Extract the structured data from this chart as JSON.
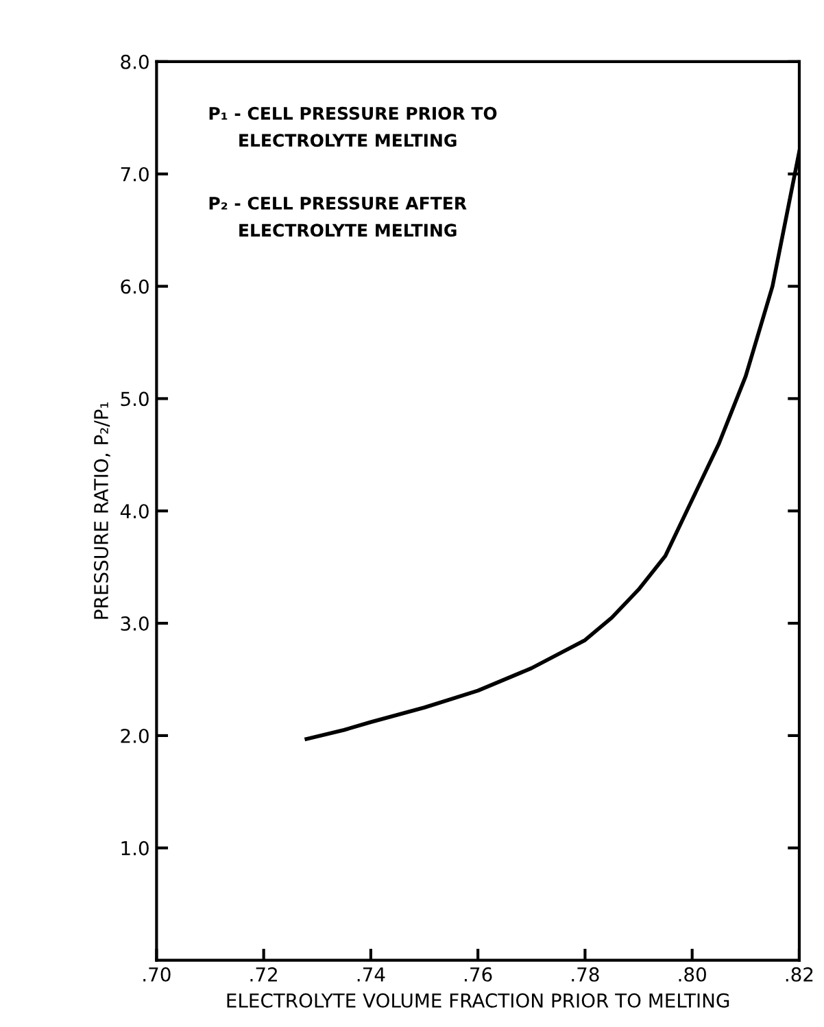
{
  "chart_data": {
    "type": "line",
    "xlabel": "ELECTROLYTE VOLUME FRACTION PRIOR TO MELTING",
    "ylabel": "PRESSURE RATIO, P₂/P₁",
    "annotations": [
      "P₁ - CELL PRESSURE PRIOR TO\n     ELECTROLYTE MELTING",
      "P₂ - CELL PRESSURE AFTER\n     ELECTROLYTE MELTING"
    ],
    "x": [
      0.728,
      0.735,
      0.74,
      0.75,
      0.76,
      0.77,
      0.78,
      0.785,
      0.79,
      0.795,
      0.8,
      0.805,
      0.81,
      0.815,
      0.82
    ],
    "series": [
      {
        "color": "#000000",
        "values": [
          1.97,
          2.05,
          2.12,
          2.25,
          2.4,
          2.6,
          2.85,
          3.05,
          3.3,
          3.6,
          4.1,
          4.6,
          5.2,
          6.0,
          7.2
        ]
      }
    ],
    "xlim": [
      0.7,
      0.82
    ],
    "ylim": [
      0,
      8
    ],
    "xticks": [
      {
        "value": 0.7,
        "label": ".70"
      },
      {
        "value": 0.72,
        "label": ".72"
      },
      {
        "value": 0.74,
        "label": ".74"
      },
      {
        "value": 0.76,
        "label": ".76"
      },
      {
        "value": 0.78,
        "label": ".78"
      },
      {
        "value": 0.8,
        "label": ".80"
      },
      {
        "value": 0.82,
        "label": ".82"
      }
    ],
    "yticks": [
      {
        "value": 1,
        "label": "1.0"
      },
      {
        "value": 2,
        "label": "2.0"
      },
      {
        "value": 3,
        "label": "3.0"
      },
      {
        "value": 4,
        "label": "4.0"
      },
      {
        "value": 5,
        "label": "5.0"
      },
      {
        "value": 6,
        "label": "6.0"
      },
      {
        "value": 7,
        "label": "7.0"
      },
      {
        "value": 8,
        "label": "8.0"
      }
    ],
    "grid": false,
    "legend": false,
    "marker": "none",
    "line_style": "solid"
  }
}
